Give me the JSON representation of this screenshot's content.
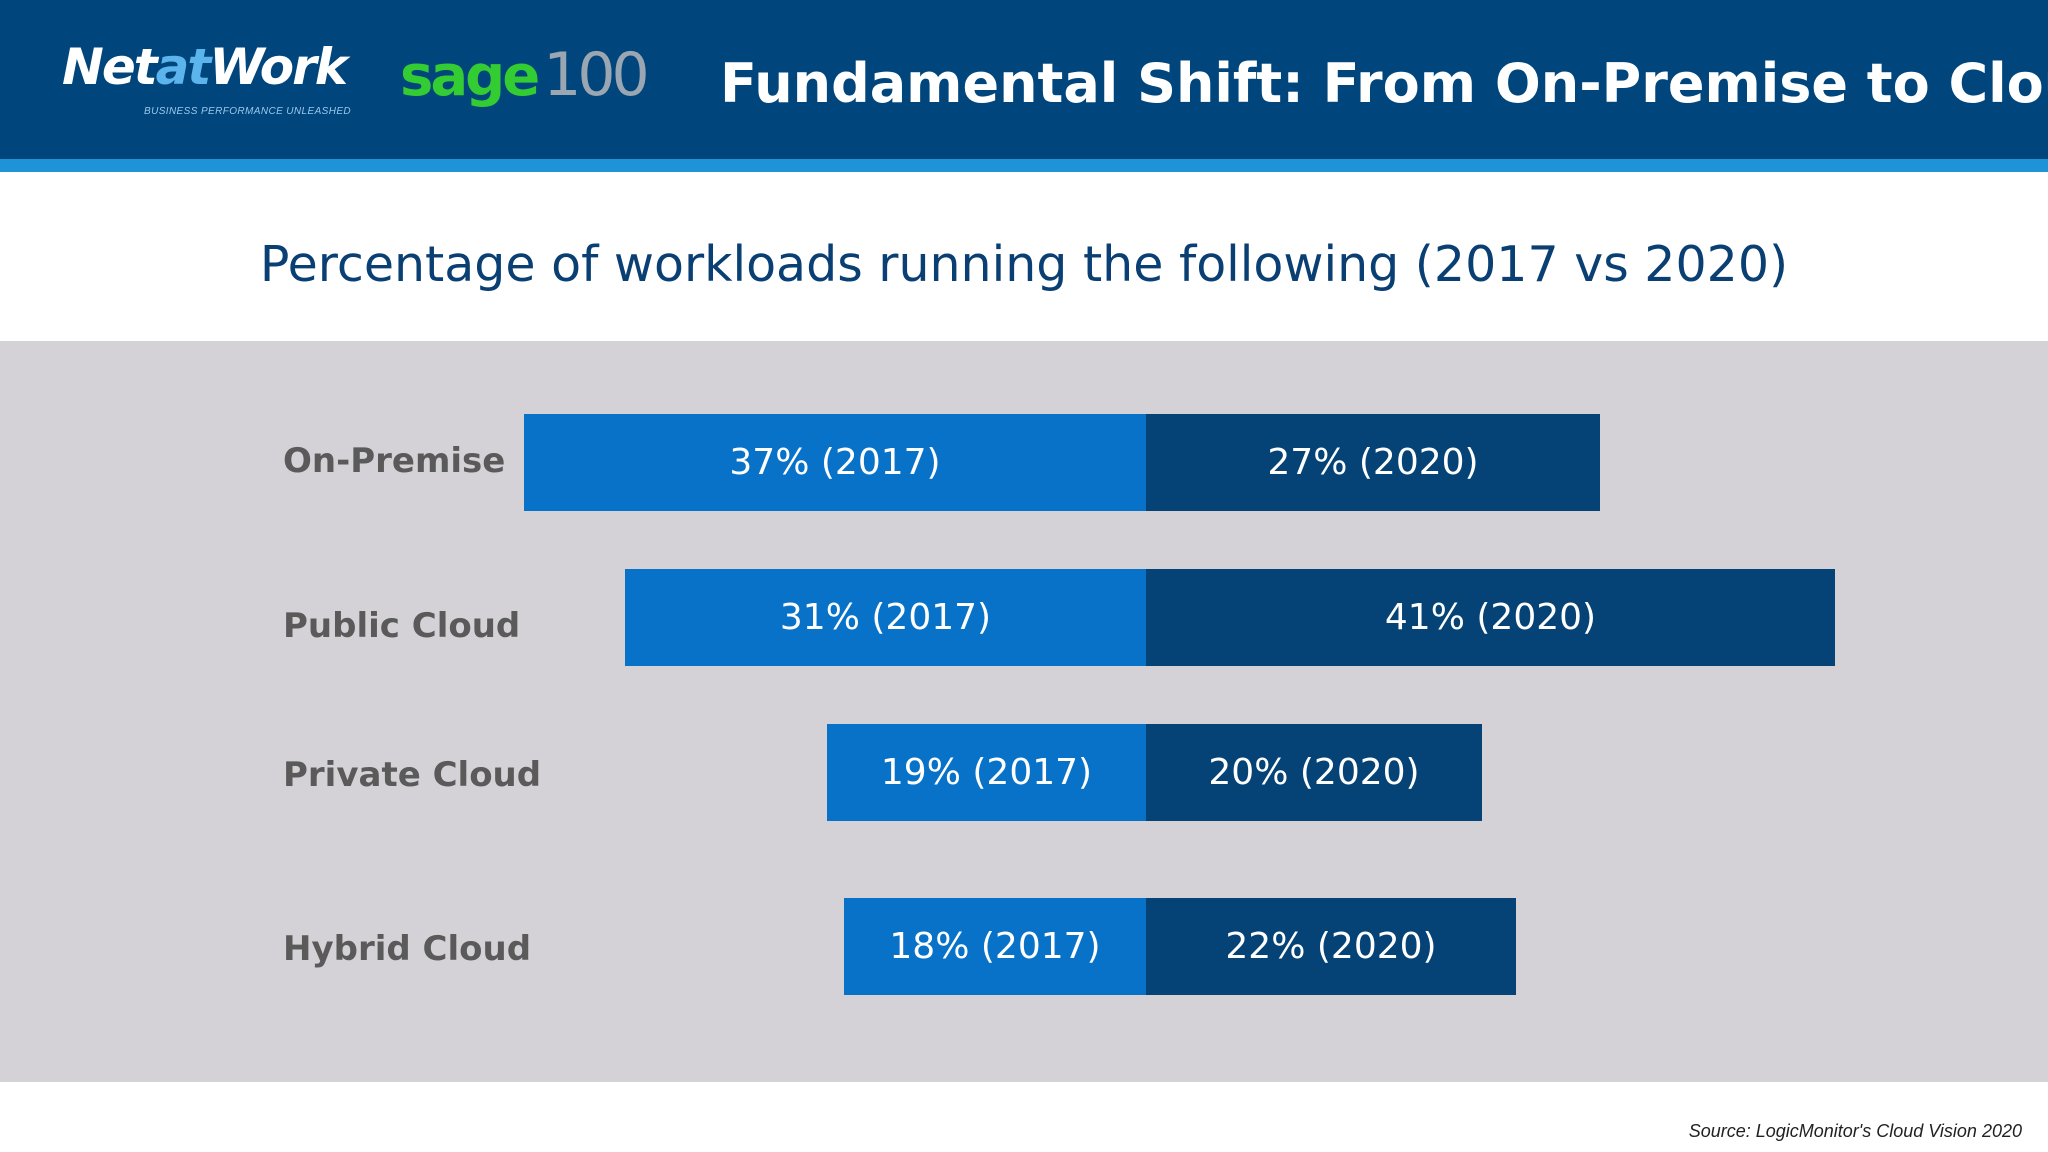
{
  "header": {
    "title": "Fundamental Shift: From On-Premise to Cloud",
    "logo_naw": {
      "part1": "Net",
      "part2": "at",
      "part3": "Work",
      "tagline": "BUSINESS PERFORMANCE UNLEASHED"
    },
    "logo_sage": {
      "word": "sage",
      "number": "100"
    },
    "colors": {
      "header_bg": "#00457c",
      "stripe": "#1e93d8"
    }
  },
  "chart_data": {
    "type": "bar",
    "title": "Percentage of workloads running the following (2017 vs 2020)",
    "categories": [
      "On-Premise",
      "Public Cloud",
      "Private Cloud",
      "Hybrid Cloud"
    ],
    "series": [
      {
        "name": "2017",
        "values": [
          37,
          31,
          19,
          18
        ],
        "labels": [
          "37% (2017)",
          "31% (2017)",
          "19% (2017)",
          "18% (2017)"
        ],
        "color": "#0872c8"
      },
      {
        "name": "2020",
        "values": [
          27,
          41,
          20,
          22
        ],
        "labels": [
          "27% (2020)",
          "41% (2020)",
          "20% (2020)",
          "22% (2020)"
        ],
        "color": "#054377"
      }
    ],
    "unit": "%",
    "layout": "diverging-from-center"
  },
  "footer": {
    "source": "Source: LogicMonitor's Cloud Vision 2020"
  }
}
